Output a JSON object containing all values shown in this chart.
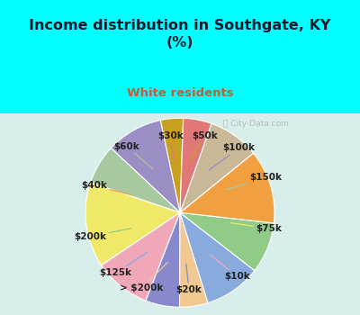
{
  "title": "Income distribution in Southgate, KY\n(%)",
  "subtitle": "White residents",
  "title_color": "#1a1a2e",
  "subtitle_color": "#c06030",
  "bg_top": "#00ffff",
  "bg_chart_top": "#e0f5f0",
  "bg_chart_bottom": "#d0eee8",
  "watermark": "ⓘ City-Data.com",
  "labels": [
    "$50k",
    "$100k",
    "$150k",
    "$75k",
    "$10k",
    "$20k",
    "> $200k",
    "$125k",
    "$200k",
    "$40k",
    "$60k",
    "$30k"
  ],
  "values": [
    4,
    10,
    7,
    15,
    10,
    6,
    5,
    10,
    9,
    13,
    9,
    5
  ],
  "colors": [
    "#c8a020",
    "#9b8ec4",
    "#a8c8a0",
    "#f0e868",
    "#f0a8b8",
    "#8888cc",
    "#f0c890",
    "#88aadd",
    "#90cc88",
    "#f0a040",
    "#c8b898",
    "#e07878"
  ],
  "label_fontsize": 7.5,
  "figsize": [
    4.0,
    3.5
  ],
  "dpi": 100,
  "startangle": 88
}
